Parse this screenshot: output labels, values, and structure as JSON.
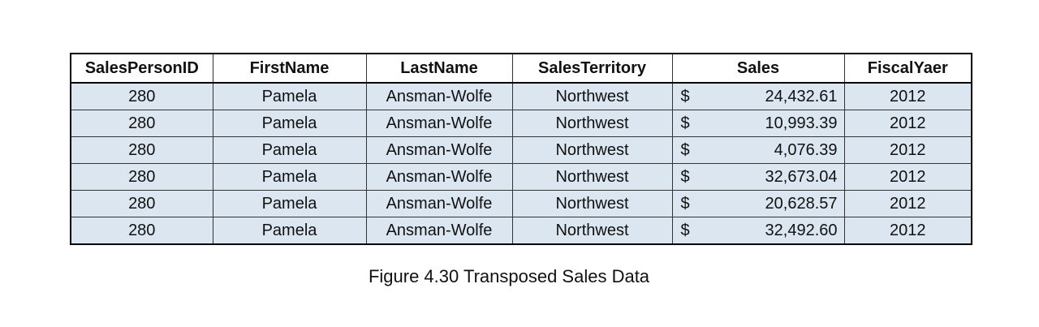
{
  "table": {
    "header": [
      "SalesPersonID",
      "FirstName",
      "LastName",
      "SalesTerritory",
      "Sales",
      "FiscalYaer"
    ],
    "rows": [
      [
        "280",
        "Pamela",
        "Ansman-Wolfe",
        "Northwest",
        {
          "currency": "$",
          "amount": "24,432.61"
        },
        "2012"
      ],
      [
        "280",
        "Pamela",
        "Ansman-Wolfe",
        "Northwest",
        {
          "currency": "$",
          "amount": "10,993.39"
        },
        "2012"
      ],
      [
        "280",
        "Pamela",
        "Ansman-Wolfe",
        "Northwest",
        {
          "currency": "$",
          "amount": "4,076.39"
        },
        "2012"
      ],
      [
        "280",
        "Pamela",
        "Ansman-Wolfe",
        "Northwest",
        {
          "currency": "$",
          "amount": "32,673.04"
        },
        "2012"
      ],
      [
        "280",
        "Pamela",
        "Ansman-Wolfe",
        "Northwest",
        {
          "currency": "$",
          "amount": "20,628.57"
        },
        "2012"
      ],
      [
        "280",
        "Pamela",
        "Ansman-Wolfe",
        "Northwest",
        {
          "currency": "$",
          "amount": "32,492.60"
        },
        "2012"
      ]
    ]
  },
  "caption": "Figure 4.30 Transposed Sales Data"
}
